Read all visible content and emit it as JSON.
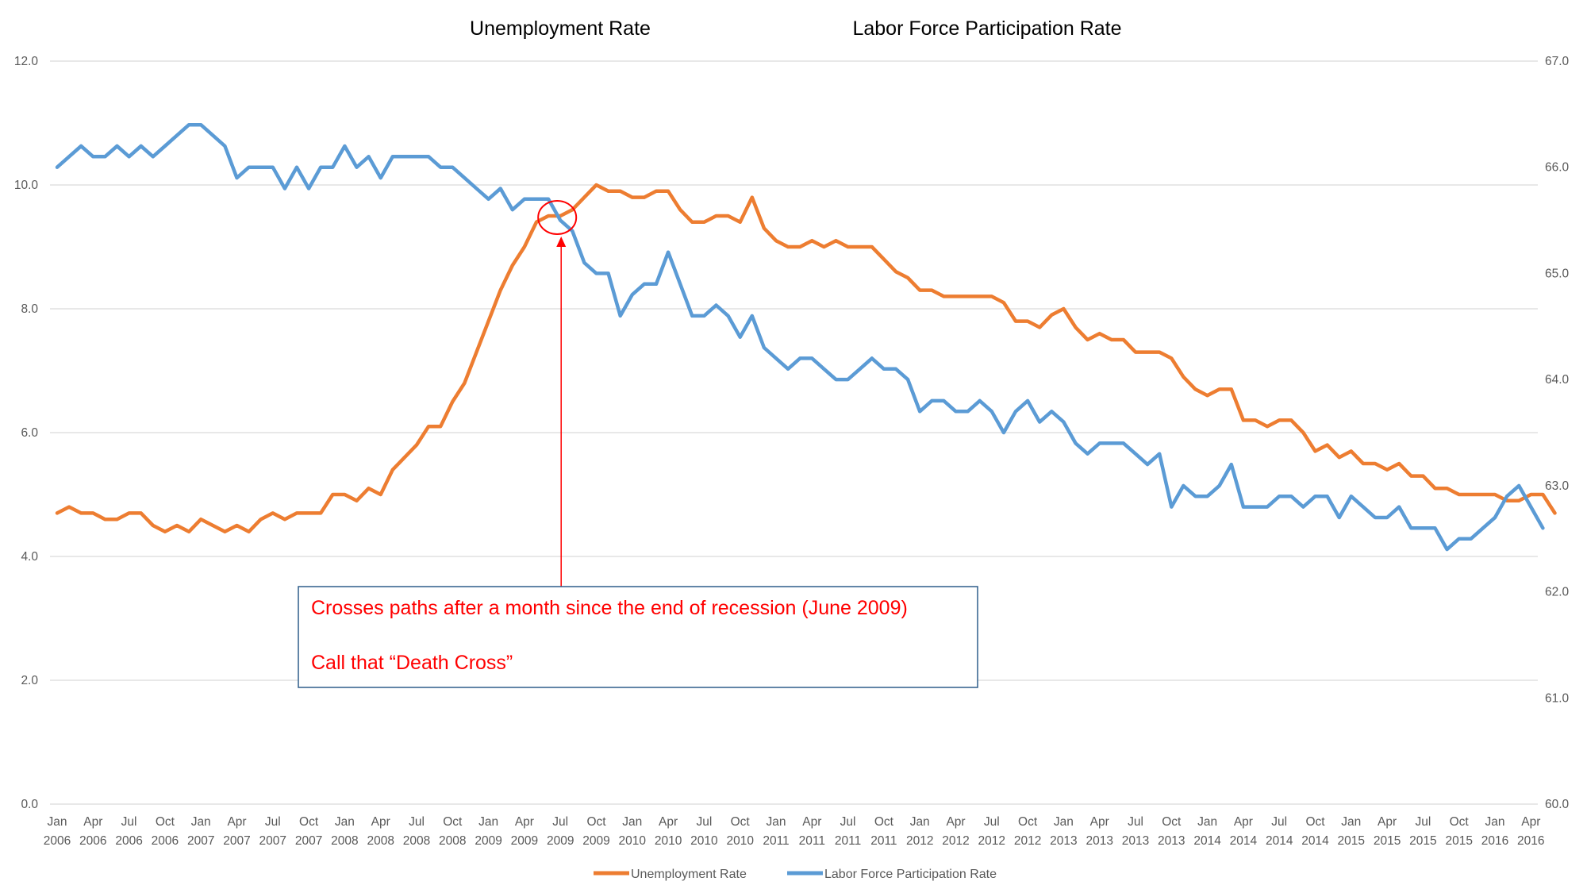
{
  "chart_data": {
    "type": "line",
    "titles": [
      "Unemployment Rate",
      "Labor Force Participation Rate"
    ],
    "x_labels": [
      [
        "Jan",
        "2006"
      ],
      [
        "Apr",
        "2006"
      ],
      [
        "Jul",
        "2006"
      ],
      [
        "Oct",
        "2006"
      ],
      [
        "Jan",
        "2007"
      ],
      [
        "Apr",
        "2007"
      ],
      [
        "Jul",
        "2007"
      ],
      [
        "Oct",
        "2007"
      ],
      [
        "Jan",
        "2008"
      ],
      [
        "Apr",
        "2008"
      ],
      [
        "Jul",
        "2008"
      ],
      [
        "Oct",
        "2008"
      ],
      [
        "Jan",
        "2009"
      ],
      [
        "Apr",
        "2009"
      ],
      [
        "Jul",
        "2009"
      ],
      [
        "Oct",
        "2009"
      ],
      [
        "Jan",
        "2010"
      ],
      [
        "Apr",
        "2010"
      ],
      [
        "Jul",
        "2010"
      ],
      [
        "Oct",
        "2010"
      ],
      [
        "Jan",
        "2011"
      ],
      [
        "Apr",
        "2011"
      ],
      [
        "Jul",
        "2011"
      ],
      [
        "Oct",
        "2011"
      ],
      [
        "Jan",
        "2012"
      ],
      [
        "Apr",
        "2012"
      ],
      [
        "Jul",
        "2012"
      ],
      [
        "Oct",
        "2012"
      ],
      [
        "Jan",
        "2013"
      ],
      [
        "Apr",
        "2013"
      ],
      [
        "Jul",
        "2013"
      ],
      [
        "Oct",
        "2013"
      ],
      [
        "Jan",
        "2014"
      ],
      [
        "Apr",
        "2014"
      ],
      [
        "Jul",
        "2014"
      ],
      [
        "Oct",
        "2014"
      ],
      [
        "Jan",
        "2015"
      ],
      [
        "Apr",
        "2015"
      ],
      [
        "Jul",
        "2015"
      ],
      [
        "Oct",
        "2015"
      ],
      [
        "Jan",
        "2016"
      ],
      [
        "Apr",
        "2016"
      ]
    ],
    "y_left": {
      "ticks": [
        "0.0",
        "2.0",
        "4.0",
        "6.0",
        "8.0",
        "10.0",
        "12.0"
      ],
      "range": [
        0,
        12
      ]
    },
    "y_right": {
      "ticks": [
        "60.0",
        "61.0",
        "62.0",
        "63.0",
        "64.0",
        "65.0",
        "66.0",
        "67.0"
      ],
      "range": [
        60,
        67
      ]
    },
    "grid": true,
    "legend_position": "bottom",
    "series": [
      {
        "name": "Unemployment Rate",
        "axis": "left",
        "color": "#ED7D31",
        "values": [
          4.7,
          4.8,
          4.7,
          4.7,
          4.6,
          4.6,
          4.7,
          4.7,
          4.5,
          4.4,
          4.5,
          4.4,
          4.6,
          4.5,
          4.4,
          4.5,
          4.4,
          4.6,
          4.7,
          4.6,
          4.7,
          4.7,
          4.7,
          5.0,
          5.0,
          4.9,
          5.1,
          5.0,
          5.4,
          5.6,
          5.8,
          6.1,
          6.1,
          6.5,
          6.8,
          7.3,
          7.8,
          8.3,
          8.7,
          9.0,
          9.4,
          9.5,
          9.5,
          9.6,
          9.8,
          10.0,
          9.9,
          9.9,
          9.8,
          9.8,
          9.9,
          9.9,
          9.6,
          9.4,
          9.4,
          9.5,
          9.5,
          9.4,
          9.8,
          9.3,
          9.1,
          9.0,
          9.0,
          9.1,
          9.0,
          9.1,
          9.0,
          9.0,
          9.0,
          8.8,
          8.6,
          8.5,
          8.3,
          8.3,
          8.2,
          8.2,
          8.2,
          8.2,
          8.2,
          8.1,
          7.8,
          7.8,
          7.7,
          7.9,
          8.0,
          7.7,
          7.5,
          7.6,
          7.5,
          7.5,
          7.3,
          7.3,
          7.3,
          7.2,
          6.9,
          6.7,
          6.6,
          6.7,
          6.7,
          6.2,
          6.2,
          6.1,
          6.2,
          6.2,
          6.0,
          5.7,
          5.8,
          5.6,
          5.7,
          5.5,
          5.5,
          5.4,
          5.5,
          5.3,
          5.3,
          5.1,
          5.1,
          5.0,
          5.0,
          5.0,
          5.0,
          4.9,
          4.9,
          5.0,
          5.0,
          4.7
        ]
      },
      {
        "name": "Labor Force Participation Rate",
        "axis": "right",
        "color": "#5B9BD5",
        "values": [
          66.0,
          66.1,
          66.2,
          66.1,
          66.1,
          66.2,
          66.1,
          66.2,
          66.1,
          66.2,
          66.3,
          66.4,
          66.4,
          66.3,
          66.2,
          65.9,
          66.0,
          66.0,
          66.0,
          65.8,
          66.0,
          65.8,
          66.0,
          66.0,
          66.2,
          66.0,
          66.1,
          65.9,
          66.1,
          66.1,
          66.1,
          66.1,
          66.0,
          66.0,
          65.9,
          65.8,
          65.7,
          65.8,
          65.6,
          65.7,
          65.7,
          65.7,
          65.5,
          65.4,
          65.1,
          65.0,
          65.0,
          64.6,
          64.8,
          64.9,
          64.9,
          65.2,
          64.9,
          64.6,
          64.6,
          64.7,
          64.6,
          64.4,
          64.6,
          64.3,
          64.2,
          64.1,
          64.2,
          64.2,
          64.1,
          64.0,
          64.0,
          64.1,
          64.2,
          64.1,
          64.1,
          64.0,
          63.7,
          63.8,
          63.8,
          63.7,
          63.7,
          63.8,
          63.7,
          63.5,
          63.7,
          63.8,
          63.6,
          63.7,
          63.6,
          63.4,
          63.3,
          63.4,
          63.4,
          63.4,
          63.3,
          63.2,
          63.3,
          62.8,
          63.0,
          62.9,
          62.9,
          63.0,
          63.2,
          62.8,
          62.8,
          62.8,
          62.9,
          62.9,
          62.8,
          62.9,
          62.9,
          62.7,
          62.9,
          62.8,
          62.7,
          62.7,
          62.8,
          62.6,
          62.6,
          62.6,
          62.4,
          62.5,
          62.5,
          62.6,
          62.7,
          62.9,
          63.0,
          62.8,
          62.6
        ]
      }
    ],
    "annotation": {
      "line1": "Crosses paths after a month since the end of recession (June 2009)",
      "line2": "Call that “Death Cross”",
      "color": "#FF0000",
      "box_border_color": "#2E5D8A",
      "marker_month_index": 42
    }
  }
}
